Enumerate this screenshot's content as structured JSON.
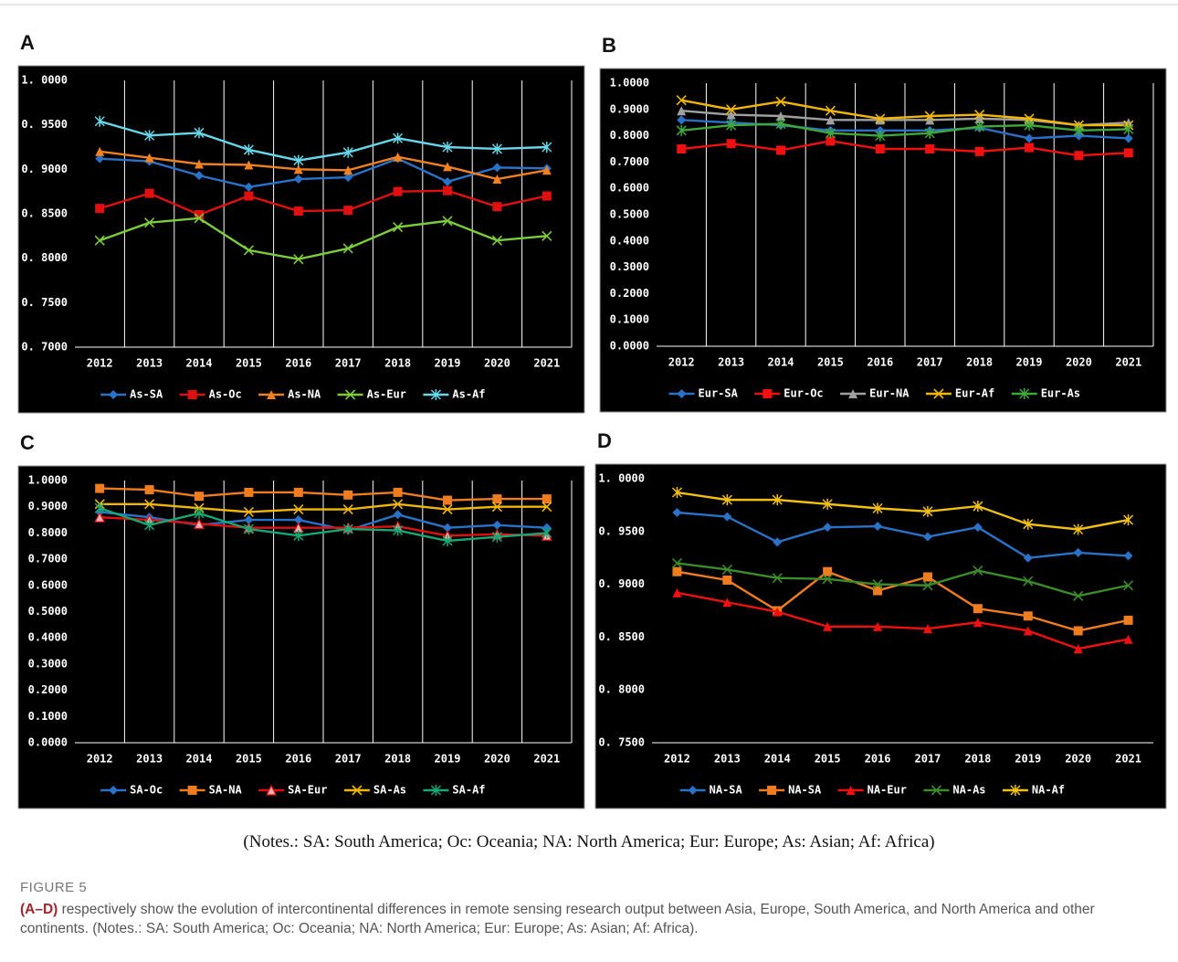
{
  "chart_data": [
    {
      "type": "line",
      "panel": "A",
      "categories": [
        "2012",
        "2013",
        "2014",
        "2015",
        "2016",
        "2017",
        "2018",
        "2019",
        "2020",
        "2021"
      ],
      "ylim": [
        0.7,
        1.0
      ],
      "yticks": [
        {
          "value": 0.7,
          "label": "0. 7000"
        },
        {
          "value": 0.75,
          "label": "0. 7500"
        },
        {
          "value": 0.8,
          "label": "0. 8000"
        },
        {
          "value": 0.85,
          "label": "0. 8500"
        },
        {
          "value": 0.9,
          "label": "0. 9000"
        },
        {
          "value": 0.95,
          "label": "0. 9500"
        },
        {
          "value": 1.0,
          "label": "1. 0000"
        }
      ],
      "grid": "x",
      "series": [
        {
          "name": "As-SA",
          "color": "#2a72c8",
          "marker": "diamond",
          "values": [
            0.912,
            0.909,
            0.893,
            0.88,
            0.889,
            0.891,
            0.912,
            0.886,
            0.902,
            0.901
          ]
        },
        {
          "name": "As-Oc",
          "color": "#e01010",
          "marker": "square",
          "values": [
            0.856,
            0.873,
            0.849,
            0.87,
            0.853,
            0.854,
            0.875,
            0.876,
            0.858,
            0.87
          ]
        },
        {
          "name": "As-NA",
          "color": "#f08020",
          "marker": "triangle",
          "values": [
            0.92,
            0.913,
            0.906,
            0.905,
            0.9,
            0.899,
            0.914,
            0.903,
            0.889,
            0.899
          ]
        },
        {
          "name": "As-Eur",
          "color": "#7ccc3c",
          "marker": "x",
          "values": [
            0.82,
            0.84,
            0.845,
            0.809,
            0.799,
            0.811,
            0.835,
            0.842,
            0.82,
            0.825
          ]
        },
        {
          "name": "As-Af",
          "color": "#66d6e8",
          "marker": "asterisk",
          "values": [
            0.954,
            0.938,
            0.941,
            0.922,
            0.91,
            0.919,
            0.935,
            0.925,
            0.923,
            0.925
          ]
        }
      ]
    },
    {
      "type": "line",
      "panel": "B",
      "categories": [
        "2012",
        "2013",
        "2014",
        "2015",
        "2016",
        "2017",
        "2018",
        "2019",
        "2020",
        "2021"
      ],
      "ylim": [
        0,
        1.0
      ],
      "yticks": [
        {
          "value": 0,
          "label": "0.0000"
        },
        {
          "value": 0.1,
          "label": "0.1000"
        },
        {
          "value": 0.2,
          "label": "0.2000"
        },
        {
          "value": 0.3,
          "label": "0.3000"
        },
        {
          "value": 0.4,
          "label": "0.4000"
        },
        {
          "value": 0.5,
          "label": "0.5000"
        },
        {
          "value": 0.6,
          "label": "0.6000"
        },
        {
          "value": 0.7,
          "label": "0.7000"
        },
        {
          "value": 0.8,
          "label": "0.8000"
        },
        {
          "value": 0.9,
          "label": "0.9000"
        },
        {
          "value": 1.0,
          "label": "1.0000"
        }
      ],
      "grid": "x",
      "series": [
        {
          "name": "Eur-SA",
          "color": "#2a72c8",
          "marker": "diamond",
          "values": [
            0.86,
            0.85,
            0.84,
            0.82,
            0.82,
            0.82,
            0.83,
            0.79,
            0.8,
            0.79
          ]
        },
        {
          "name": "Eur-Oc",
          "color": "#f01010",
          "marker": "square",
          "values": [
            0.75,
            0.77,
            0.745,
            0.78,
            0.75,
            0.75,
            0.74,
            0.755,
            0.725,
            0.735
          ]
        },
        {
          "name": "Eur-NA",
          "color": "#a0a0a0",
          "marker": "triangle",
          "values": [
            0.895,
            0.88,
            0.875,
            0.86,
            0.86,
            0.86,
            0.865,
            0.86,
            0.84,
            0.85
          ]
        },
        {
          "name": "Eur-Af",
          "color": "#f2b705",
          "marker": "x",
          "values": [
            0.935,
            0.9,
            0.93,
            0.895,
            0.865,
            0.875,
            0.88,
            0.865,
            0.84,
            0.84
          ]
        },
        {
          "name": "Eur-As",
          "color": "#3ea83a",
          "marker": "asterisk",
          "values": [
            0.82,
            0.84,
            0.845,
            0.81,
            0.8,
            0.81,
            0.835,
            0.84,
            0.82,
            0.825
          ]
        }
      ]
    },
    {
      "type": "line",
      "panel": "C",
      "categories": [
        "2012",
        "2013",
        "2014",
        "2015",
        "2016",
        "2017",
        "2018",
        "2019",
        "2020",
        "2021"
      ],
      "ylim": [
        0,
        1.0
      ],
      "yticks": [
        {
          "value": 0,
          "label": "0.0000"
        },
        {
          "value": 0.1,
          "label": "0.1000"
        },
        {
          "value": 0.2,
          "label": "0.2000"
        },
        {
          "value": 0.3,
          "label": "0.3000"
        },
        {
          "value": 0.4,
          "label": "0.4000"
        },
        {
          "value": 0.5,
          "label": "0.5000"
        },
        {
          "value": 0.6,
          "label": "0.6000"
        },
        {
          "value": 0.7,
          "label": "0.7000"
        },
        {
          "value": 0.8,
          "label": "0.8000"
        },
        {
          "value": 0.9,
          "label": "0.9000"
        },
        {
          "value": 1.0,
          "label": "1.0000"
        }
      ],
      "grid": "x",
      "series": [
        {
          "name": "SA-Oc",
          "color": "#2a72c8",
          "marker": "diamond",
          "values": [
            0.88,
            0.86,
            0.83,
            0.85,
            0.85,
            0.81,
            0.87,
            0.82,
            0.83,
            0.82
          ]
        },
        {
          "name": "SA-NA",
          "color": "#f07c20",
          "marker": "square",
          "values": [
            0.97,
            0.965,
            0.94,
            0.955,
            0.955,
            0.945,
            0.955,
            0.925,
            0.93,
            0.93
          ]
        },
        {
          "name": "SA-Eur",
          "color": "#e01010",
          "marker": "open-triangle",
          "values": [
            0.86,
            0.85,
            0.835,
            0.82,
            0.82,
            0.82,
            0.825,
            0.79,
            0.795,
            0.79
          ]
        },
        {
          "name": "SA-As",
          "color": "#f2b705",
          "marker": "x",
          "values": [
            0.91,
            0.91,
            0.895,
            0.88,
            0.89,
            0.89,
            0.91,
            0.89,
            0.9,
            0.9
          ]
        },
        {
          "name": "SA-Af",
          "color": "#16a874",
          "marker": "asterisk",
          "values": [
            0.895,
            0.83,
            0.875,
            0.815,
            0.79,
            0.815,
            0.81,
            0.77,
            0.785,
            0.8
          ]
        }
      ]
    },
    {
      "type": "line",
      "panel": "D",
      "categories": [
        "2012",
        "2013",
        "2014",
        "2015",
        "2016",
        "2017",
        "2018",
        "2019",
        "2020",
        "2021"
      ],
      "ylim": [
        0.75,
        1.0
      ],
      "yticks": [
        {
          "value": 0.75,
          "label": "0. 7500"
        },
        {
          "value": 0.8,
          "label": "0. 8000"
        },
        {
          "value": 0.85,
          "label": "0. 8500"
        },
        {
          "value": 0.9,
          "label": "0. 9000"
        },
        {
          "value": 0.95,
          "label": "0. 9500"
        },
        {
          "value": 1.0,
          "label": "1. 0000"
        }
      ],
      "grid": "none",
      "series": [
        {
          "name": "NA-SA",
          "color": "#2a72c8",
          "marker": "diamond",
          "values": [
            0.968,
            0.964,
            0.94,
            0.954,
            0.955,
            0.945,
            0.954,
            0.925,
            0.93,
            0.927
          ]
        },
        {
          "name": "NA-SA",
          "color": "#f07c20",
          "marker": "square",
          "values": [
            0.912,
            0.904,
            0.875,
            0.912,
            0.894,
            0.907,
            0.877,
            0.87,
            0.856,
            0.866
          ]
        },
        {
          "name": "NA-Eur",
          "color": "#f01010",
          "marker": "triangle",
          "values": [
            0.892,
            0.883,
            0.874,
            0.86,
            0.86,
            0.858,
            0.864,
            0.856,
            0.839,
            0.848
          ]
        },
        {
          "name": "NA-As",
          "color": "#3c8c2a",
          "marker": "x",
          "values": [
            0.92,
            0.914,
            0.906,
            0.905,
            0.9,
            0.899,
            0.913,
            0.903,
            0.889,
            0.899
          ]
        },
        {
          "name": "NA-Af",
          "color": "#f2c010",
          "marker": "asterisk",
          "values": [
            0.987,
            0.98,
            0.98,
            0.976,
            0.972,
            0.969,
            0.974,
            0.957,
            0.952,
            0.961
          ]
        }
      ]
    }
  ],
  "figure": {
    "notes": "(Notes.:  SA: South America; Oc:  Oceania; NA:  North America; Eur:  Europe; As:  Asian; Af: Africa)",
    "label": "FIGURE 5",
    "caption_lead": "(A–D)",
    "caption_text": " respectively show the evolution of intercontinental differences in remote sensing research output between Asia, Europe, South America, and North America and other continents. (Notes.: SA: South America; Oc: Oceania; NA: North America; Eur: Europe; As: Asian; Af: Africa)."
  }
}
